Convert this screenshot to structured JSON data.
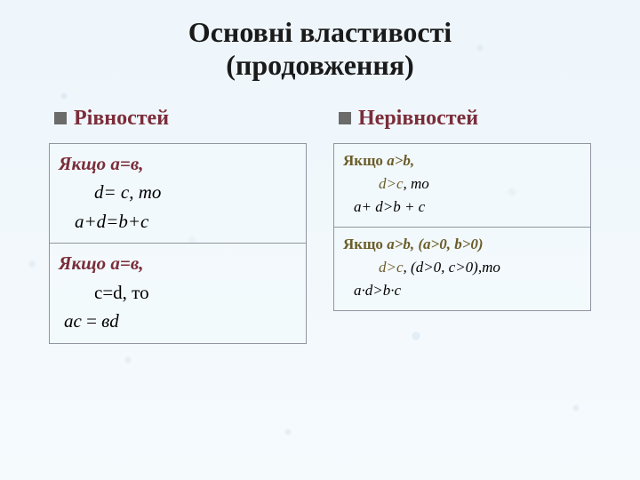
{
  "title_line1": "Основні властивості",
  "title_line2": "(продовження)",
  "left": {
    "header": "Рівностей",
    "header_color": "#7b2d3a",
    "bullet_color": "#6b6b6b",
    "cells": [
      {
        "line1": "Якщо а=в,",
        "line2": "d= с, то",
        "line3": "a+d=b+c",
        "color_cond": "#7b2d3a",
        "color_body": "#1a1a1a",
        "style": "italic"
      },
      {
        "line1": "Якщо а=в,",
        "line2": "c=d, то",
        "line3": "ac = вd",
        "color_cond": "#7b2d3a",
        "color_body": "#1a1a1a",
        "style": "mixed"
      }
    ]
  },
  "right": {
    "header": "Нерівностей",
    "header_color": "#7b2d3a",
    "bullet_color": "#6b6b6b",
    "cells": [
      {
        "line1": "Якщо a>b,",
        "line2": "d>c, то",
        "line3": "a+ d>b + c",
        "color_cond": "#6b5d2a",
        "color_body": "#1a1a1a"
      },
      {
        "line1": "Якщо a>b, (a>0, b>0)",
        "line2": "d>c, (d>0, c>0),то",
        "line3": "a·d>b·c",
        "color_cond": "#6b5d2a",
        "color_body": "#1a1a1a"
      }
    ]
  }
}
